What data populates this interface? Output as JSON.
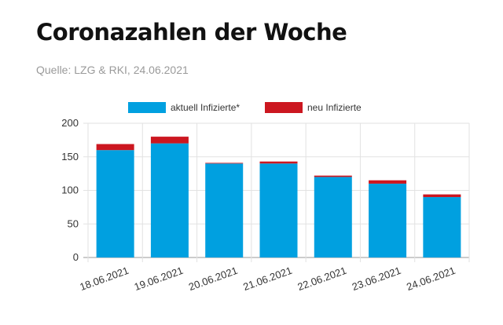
{
  "header": {
    "title": "Coronazahlen der Woche",
    "source": "Quelle: LZG & RKI, 24.06.2021"
  },
  "colors": {
    "aktuell": "#00a0e0",
    "neu": "#cc1720",
    "grid": "#e2e2e2",
    "axis": "#999999"
  },
  "chart_data": {
    "type": "bar",
    "stacked": true,
    "categories": [
      "18.06.2021",
      "19.06.2021",
      "20.06.2021",
      "21.06.2021",
      "22.06.2021",
      "23.06.2021",
      "24.06.2021"
    ],
    "series": [
      {
        "name": "aktuell Infizierte*",
        "values": [
          160,
          170,
          140,
          140,
          120,
          110,
          90
        ]
      },
      {
        "name": "neu Infizierte",
        "values": [
          9,
          10,
          1,
          3,
          2,
          5,
          4
        ]
      }
    ],
    "ylim": [
      0,
      200
    ],
    "yticks": [
      0,
      50,
      100,
      150,
      200
    ],
    "grid": true,
    "legend": "top-center",
    "xlabel": "",
    "ylabel": ""
  }
}
